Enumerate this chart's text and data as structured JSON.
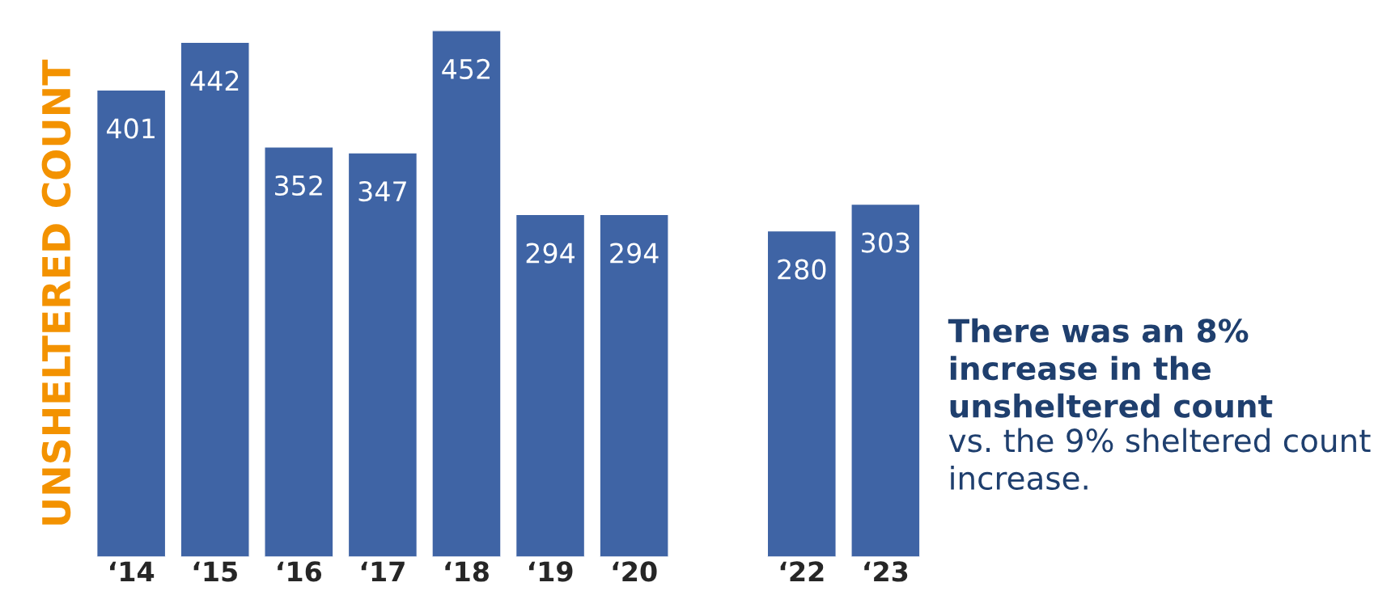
{
  "chart_data": {
    "type": "bar",
    "ylabel": "UNSHELTERED COUNT",
    "categories": [
      "‘14",
      "‘15",
      "‘16",
      "‘17",
      "‘18",
      "‘19",
      "‘20",
      null,
      "‘22",
      "‘23"
    ],
    "values": [
      401,
      442,
      352,
      347,
      452,
      294,
      294,
      null,
      280,
      303
    ],
    "color": "#3f64a5",
    "data_labels": true,
    "tick_labels": "x",
    "grid": false,
    "legend": false,
    "annotations": [
      "There was an 8% increase in the unsheltered count",
      "vs. the 9% sheltered count increase."
    ]
  }
}
